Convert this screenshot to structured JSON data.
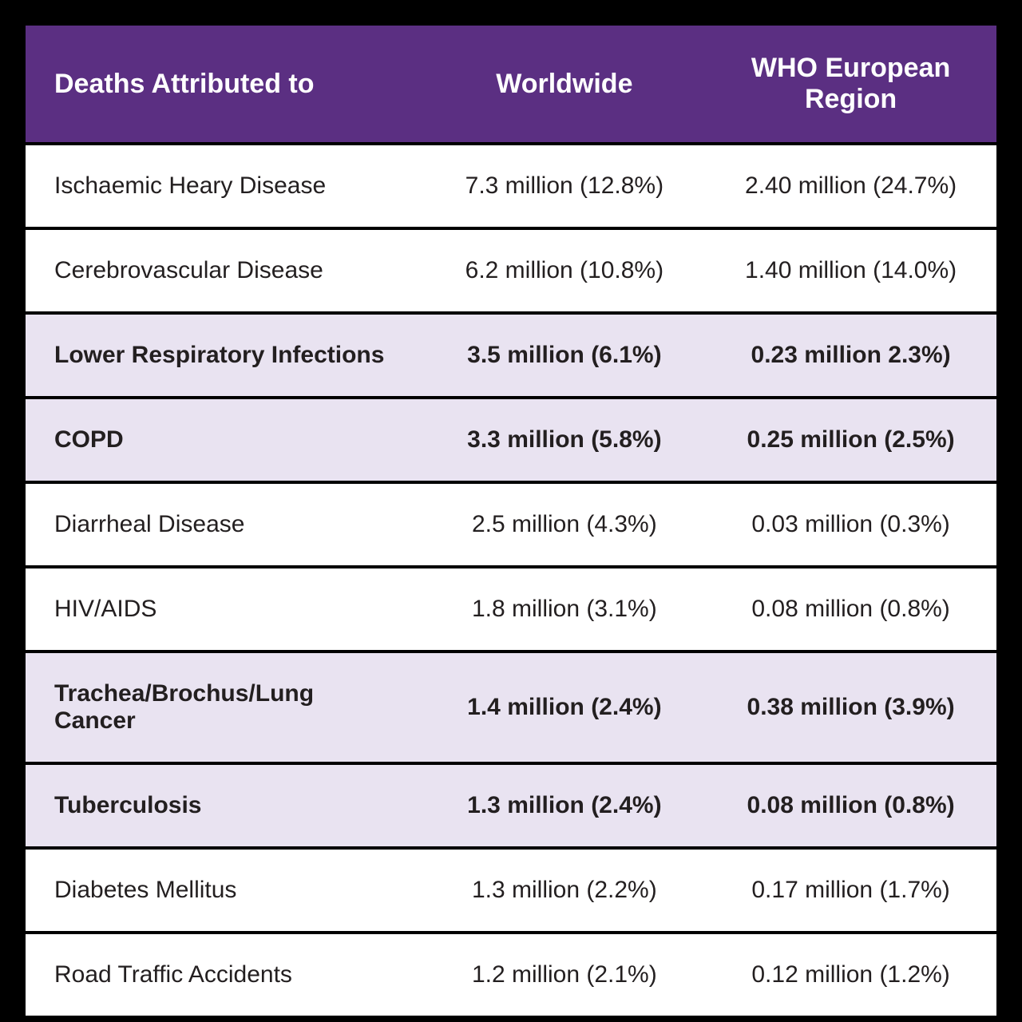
{
  "table": {
    "type": "table",
    "header_bg": "#5b2f82",
    "header_text_color": "#ffffff",
    "row_bg": "#ffffff",
    "highlight_row_bg": "#e9e3f1",
    "text_color": "#231f20",
    "border_color": "#000000",
    "header_fontsize_pt": 26,
    "body_fontsize_pt": 23,
    "columns": [
      {
        "label": "Deaths Attributed to",
        "align": "left",
        "width_pct": 41
      },
      {
        "label": "Worldwide",
        "align": "center",
        "width_pct": 29
      },
      {
        "label": "WHO European Region",
        "align": "center",
        "width_pct": 30
      }
    ],
    "rows": [
      {
        "highlight": false,
        "cells": [
          "Ischaemic Heary Disease",
          "7.3 million (12.8%)",
          "2.40 million (24.7%)"
        ]
      },
      {
        "highlight": false,
        "cells": [
          "Cerebrovascular Disease",
          "6.2 million (10.8%)",
          "1.40 million (14.0%)"
        ]
      },
      {
        "highlight": true,
        "cells": [
          "Lower Respiratory Infections",
          "3.5 million (6.1%)",
          "0.23 million 2.3%)"
        ]
      },
      {
        "highlight": true,
        "cells": [
          "COPD",
          "3.3 million (5.8%)",
          "0.25 million (2.5%)"
        ]
      },
      {
        "highlight": false,
        "cells": [
          "Diarrheal Disease",
          "2.5 million (4.3%)",
          "0.03 million (0.3%)"
        ]
      },
      {
        "highlight": false,
        "cells": [
          "HIV/AIDS",
          "1.8 million (3.1%)",
          "0.08 million (0.8%)"
        ]
      },
      {
        "highlight": true,
        "cells": [
          "Trachea/Brochus/Lung Cancer",
          "1.4 million (2.4%)",
          "0.38 million (3.9%)"
        ]
      },
      {
        "highlight": true,
        "cells": [
          "Tuberculosis",
          "1.3 million (2.4%)",
          "0.08 million (0.8%)"
        ]
      },
      {
        "highlight": false,
        "cells": [
          "Diabetes Mellitus",
          "1.3 million (2.2%)",
          "0.17 million (1.7%)"
        ]
      },
      {
        "highlight": false,
        "cells": [
          "Road Traffic Accidents",
          "1.2 million (2.1%)",
          "0.12 million (1.2%)"
        ]
      }
    ]
  }
}
